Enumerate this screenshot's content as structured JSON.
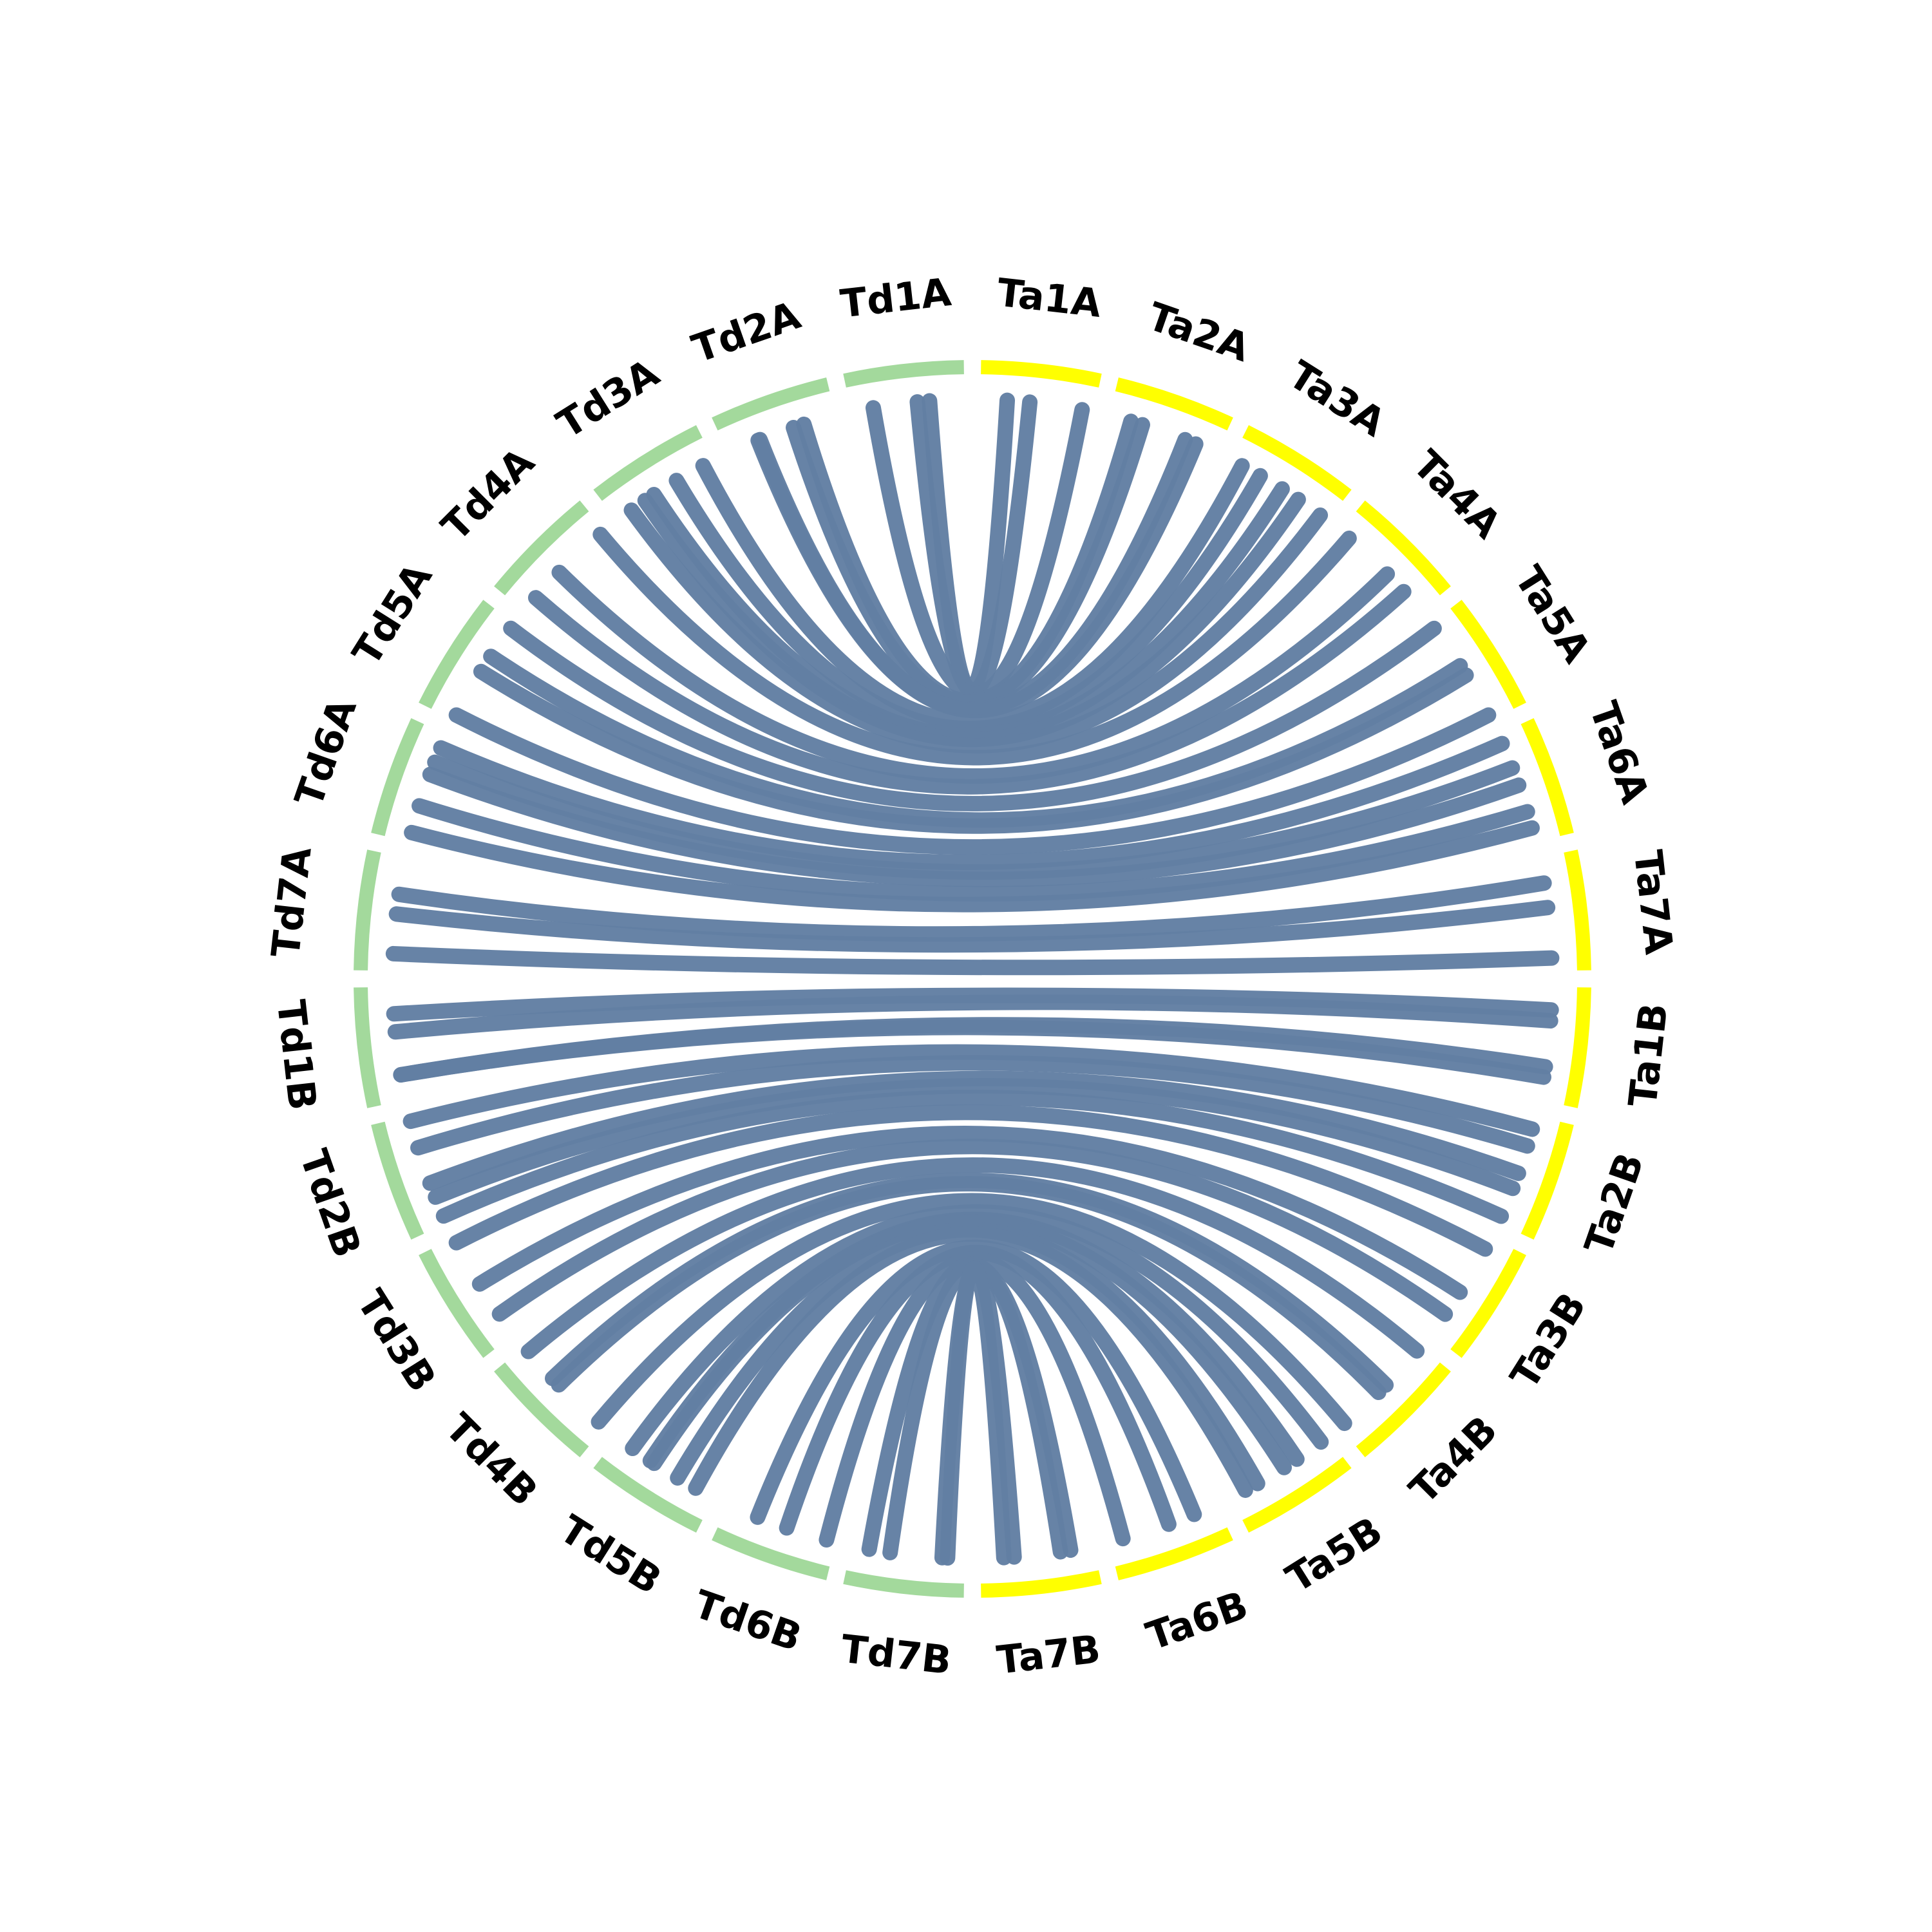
{
  "chart_data": {
    "type": "chord",
    "categories": [
      "Ta1A",
      "Ta2A",
      "Ta3A",
      "Ta4A",
      "Ta5A",
      "Ta6A",
      "Ta7A",
      "Ta1B",
      "Ta2B",
      "Ta3B",
      "Ta4B",
      "Ta5B",
      "Ta6B",
      "Ta7B",
      "Td7B",
      "Td6B",
      "Td5B",
      "Td4B",
      "Td3B",
      "Td2B",
      "Td1B",
      "Td7A",
      "Td6A",
      "Td5A",
      "Td4A",
      "Td3A",
      "Td2A",
      "Td1A"
    ],
    "colors": [
      "#ffff00",
      "#ffff00",
      "#ffff00",
      "#ffff00",
      "#ffff00",
      "#ffff00",
      "#ffff00",
      "#ffff00",
      "#ffff00",
      "#ffff00",
      "#ffff00",
      "#ffff00",
      "#ffff00",
      "#ffff00",
      "#a3d99c",
      "#a3d99c",
      "#a3d99c",
      "#a3d99c",
      "#a3d99c",
      "#a3d99c",
      "#a3d99c",
      "#a3d99c",
      "#a3d99c",
      "#a3d99c",
      "#a3d99c",
      "#a3d99c",
      "#a3d99c",
      "#a3d99c"
    ],
    "link_color": "#627fa3"
  }
}
